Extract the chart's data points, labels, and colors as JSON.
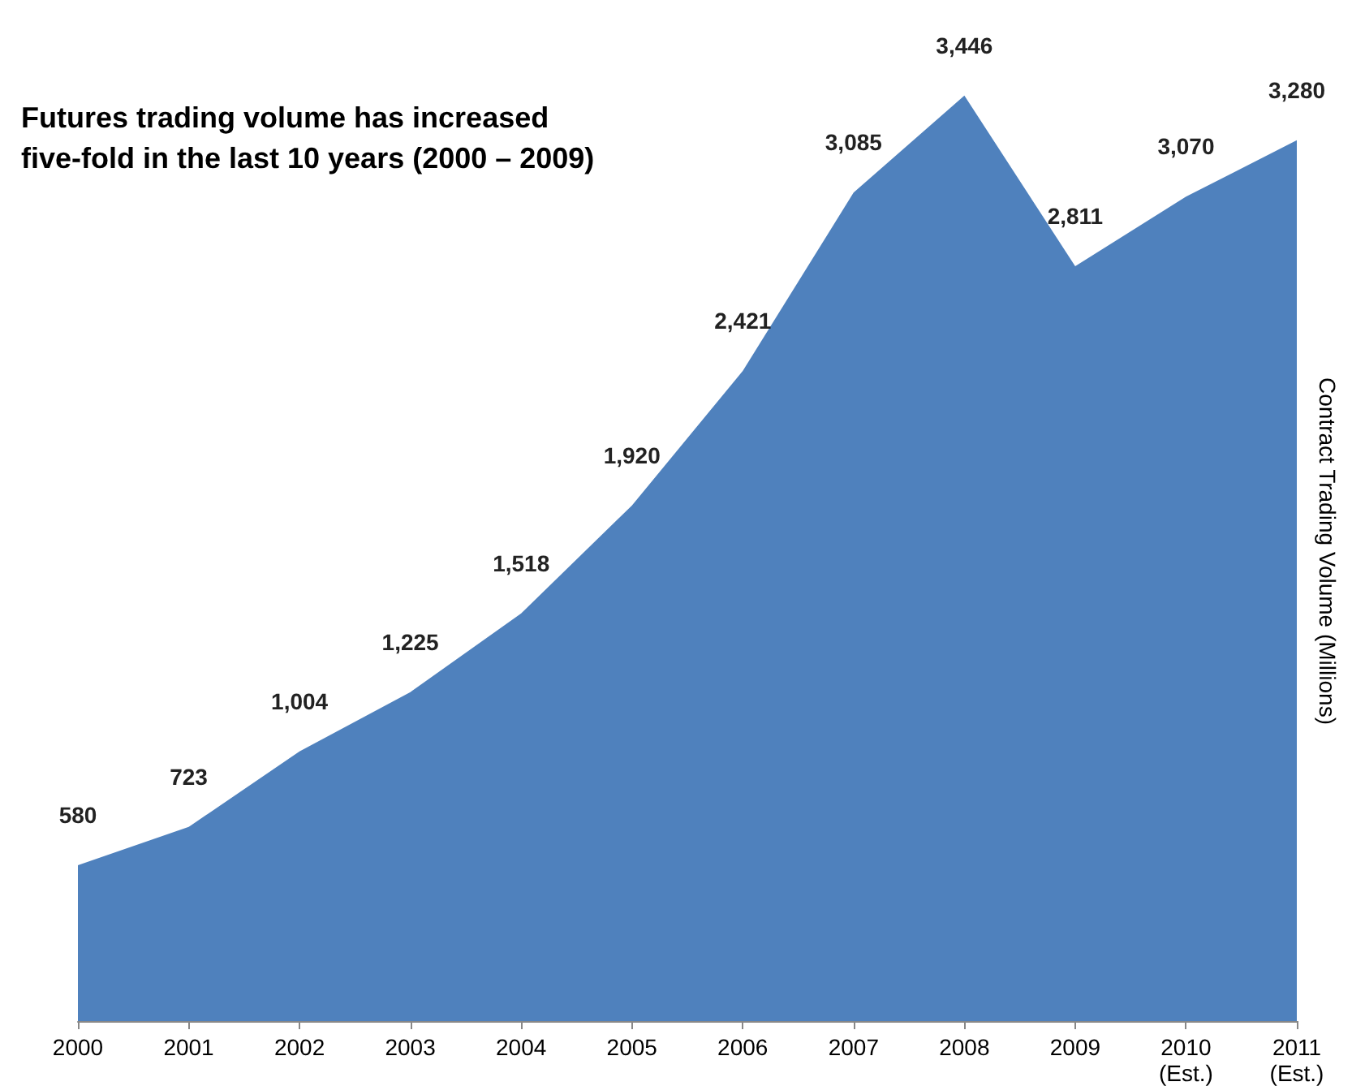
{
  "chart_data": {
    "type": "area",
    "title": "Futures trading volume has increased\nfive-fold in the last 10 years (2000 – 2009)",
    "ylabel": "Contract Trading Volume (Millions)",
    "categories": [
      "2000",
      "2001",
      "2002",
      "2003",
      "2004",
      "2005",
      "2006",
      "2007",
      "2008",
      "2009",
      "2010 (Est.)",
      "2011 (Est.)"
    ],
    "values": [
      580,
      723,
      1004,
      1225,
      1518,
      1920,
      2421,
      3085,
      3446,
      2811,
      3070,
      3280
    ],
    "color": "#4f81bd",
    "value_labels": [
      "580",
      "723",
      "1,004",
      "1,225",
      "1,518",
      "1,920",
      "2,421",
      "3,085",
      "3,446",
      "2,811",
      "3,070",
      "3,280"
    ]
  }
}
